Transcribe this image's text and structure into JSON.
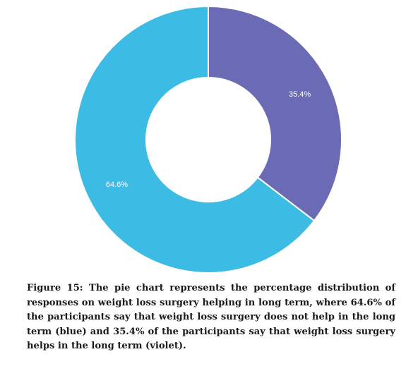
{
  "chart_data": {
    "type": "pie",
    "donut": true,
    "categories": [
      "violet",
      "blue"
    ],
    "values": [
      35.4,
      64.6
    ],
    "labels": [
      "35.4%",
      "64.6%"
    ],
    "colors": [
      "#6A6BB4",
      "#3CBBE4"
    ],
    "start": "top",
    "direction": "clockwise"
  },
  "caption": "Figure 15: The pie chart represents the percentage distribution of responses on weight loss surgery helping in long term, where 64.6% of the participants say that weight loss surgery  does not help in the long term (blue) and 35.4% of the participants say that weight loss surgery  helps in the long term (violet)."
}
